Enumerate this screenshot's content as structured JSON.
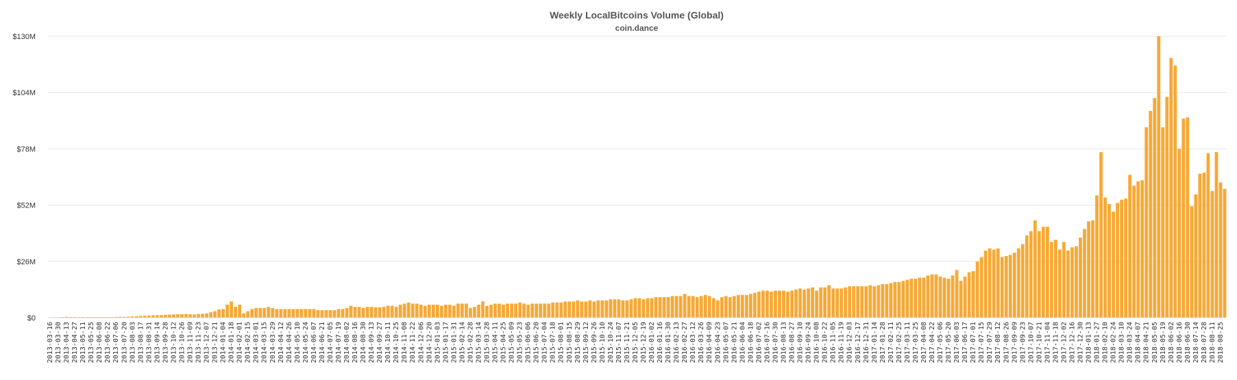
{
  "chart_data": {
    "type": "bar",
    "title": "Weekly LocalBitcoins Volume (Global)",
    "subtitle": "coin.dance",
    "xlabel": "",
    "ylabel": "",
    "ylim": [
      0,
      130000000
    ],
    "grid": true,
    "legend": "none",
    "yticks": [
      {
        "value": 0,
        "label": "$0"
      },
      {
        "value": 26000000,
        "label": "$26M"
      },
      {
        "value": 52000000,
        "label": "$52M"
      },
      {
        "value": 78000000,
        "label": "$78M"
      },
      {
        "value": 104000000,
        "label": "$104M"
      },
      {
        "value": 130000000,
        "label": "$130M"
      }
    ],
    "start_week": "2013-03-16",
    "label_every": 2,
    "values_millions": [
      0.1,
      0.2,
      0.2,
      0.3,
      0.4,
      0.3,
      0.3,
      0.3,
      0.3,
      0.3,
      0.3,
      0.3,
      0.3,
      0.3,
      0.3,
      0.3,
      0.4,
      0.4,
      0.4,
      0.5,
      0.6,
      0.7,
      0.8,
      0.9,
      1.0,
      1.1,
      1.2,
      1.2,
      1.3,
      1.4,
      1.5,
      1.6,
      1.6,
      1.7,
      1.6,
      1.5,
      1.7,
      1.8,
      2.0,
      2.5,
      3.0,
      3.8,
      4.0,
      6.0,
      7.5,
      5.0,
      6.0,
      2.0,
      3.0,
      4.0,
      4.5,
      4.5,
      4.5,
      5.0,
      4.5,
      4.0,
      4.0,
      4.0,
      4.0,
      4.0,
      4.0,
      4.0,
      4.0,
      4.0,
      4.0,
      3.5,
      3.5,
      3.5,
      3.5,
      3.5,
      4.0,
      4.0,
      4.5,
      5.5,
      5.0,
      5.0,
      4.5,
      5.0,
      5.0,
      4.8,
      4.8,
      5.0,
      5.5,
      5.5,
      5.0,
      6.0,
      6.5,
      7.0,
      6.5,
      6.5,
      6.0,
      5.5,
      6.0,
      6.0,
      6.0,
      5.5,
      6.0,
      6.0,
      5.5,
      6.5,
      6.5,
      6.5,
      4.5,
      5.0,
      6.0,
      7.5,
      5.5,
      6.0,
      6.5,
      6.5,
      6.0,
      6.5,
      6.5,
      6.5,
      7.0,
      6.5,
      6.0,
      6.5,
      6.5,
      6.5,
      6.5,
      6.5,
      7.0,
      7.0,
      7.0,
      7.5,
      7.5,
      7.5,
      8.0,
      7.5,
      7.5,
      8.0,
      7.5,
      8.0,
      8.0,
      8.0,
      8.5,
      8.5,
      8.5,
      8.0,
      8.0,
      8.5,
      9.0,
      9.0,
      8.5,
      9.0,
      9.0,
      9.5,
      9.5,
      9.5,
      9.5,
      10.0,
      10.0,
      10.0,
      11.0,
      10.0,
      10.0,
      9.5,
      10.0,
      10.5,
      10.0,
      9.0,
      8.0,
      9.5,
      10.0,
      9.5,
      10.0,
      10.5,
      10.5,
      10.5,
      11.0,
      11.5,
      12.0,
      12.5,
      12.5,
      12.0,
      12.5,
      12.5,
      12.5,
      12.0,
      12.5,
      13.0,
      13.5,
      13.0,
      13.5,
      14.0,
      12.5,
      14.0,
      14.0,
      15.0,
      13.5,
      13.5,
      13.5,
      14.0,
      14.5,
      14.5,
      14.5,
      14.5,
      14.5,
      15.0,
      14.5,
      15.0,
      15.5,
      15.5,
      16.0,
      16.5,
      16.5,
      17.0,
      17.5,
      18.0,
      18.0,
      18.5,
      18.5,
      19.5,
      20.0,
      20.0,
      19.0,
      18.5,
      18.0,
      19.5,
      22.0,
      17.0,
      19.0,
      21.0,
      21.5,
      26.0,
      28.0,
      31.0,
      32.0,
      31.5,
      32.0,
      28.0,
      28.5,
      29.0,
      30.0,
      32.0,
      34.0,
      38.0,
      40.0,
      45.0,
      40.0,
      42.0,
      42.0,
      35.0,
      36.0,
      31.5,
      35.0,
      31.0,
      32.5,
      33.0,
      37.0,
      41.0,
      44.5,
      45.0,
      56.5,
      76.5,
      55.5,
      52.5,
      49.0,
      53.0,
      54.5,
      55.0,
      66.0,
      61.0,
      63.0,
      63.5,
      88.0,
      95.5,
      101.5,
      130.0,
      88.0,
      102.0,
      120.0,
      116.5,
      78.0,
      92.0,
      92.5,
      51.5,
      57.0,
      66.5,
      67.0,
      76.0,
      58.5,
      76.5,
      62.5,
      59.5
    ],
    "values_note_units": "millions of USD"
  }
}
